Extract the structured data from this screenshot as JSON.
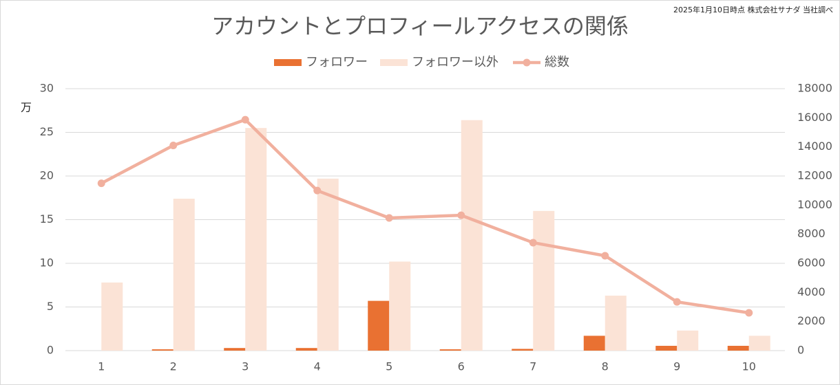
{
  "chart_data": {
    "type": "bar",
    "title": "アカウントとプロフィールアクセスの関係",
    "source": "2025年1月10日時点 株式会社サナダ 当社調べ",
    "y_unit": "万",
    "categories": [
      "1",
      "2",
      "3",
      "4",
      "5",
      "6",
      "7",
      "8",
      "9",
      "10"
    ],
    "series": [
      {
        "name": "フォロワー",
        "type": "bar",
        "color": "#e97132",
        "values": [
          0,
          0.15,
          0.3,
          0.3,
          5.7,
          0.15,
          0.2,
          1.7,
          0.55,
          0.55
        ]
      },
      {
        "name": "フォロワー以外",
        "type": "bar",
        "color": "#fbe3d6",
        "values": [
          7.8,
          17.4,
          25.5,
          19.7,
          10.2,
          26.4,
          16.0,
          6.3,
          2.3,
          1.7
        ]
      },
      {
        "name": "総数",
        "type": "line",
        "axis": "y2",
        "color": "#f1b09e",
        "values": [
          11500,
          14100,
          15870,
          11000,
          9120,
          9300,
          7420,
          6520,
          3350,
          2600
        ]
      }
    ],
    "ylim": [
      0,
      30
    ],
    "yticks": [
      0,
      5,
      10,
      15,
      20,
      25,
      30
    ],
    "y2lim": [
      0,
      18000
    ],
    "y2ticks": [
      0,
      2000,
      4000,
      6000,
      8000,
      10000,
      12000,
      14000,
      16000,
      18000
    ],
    "grid": true,
    "legend": "top"
  }
}
